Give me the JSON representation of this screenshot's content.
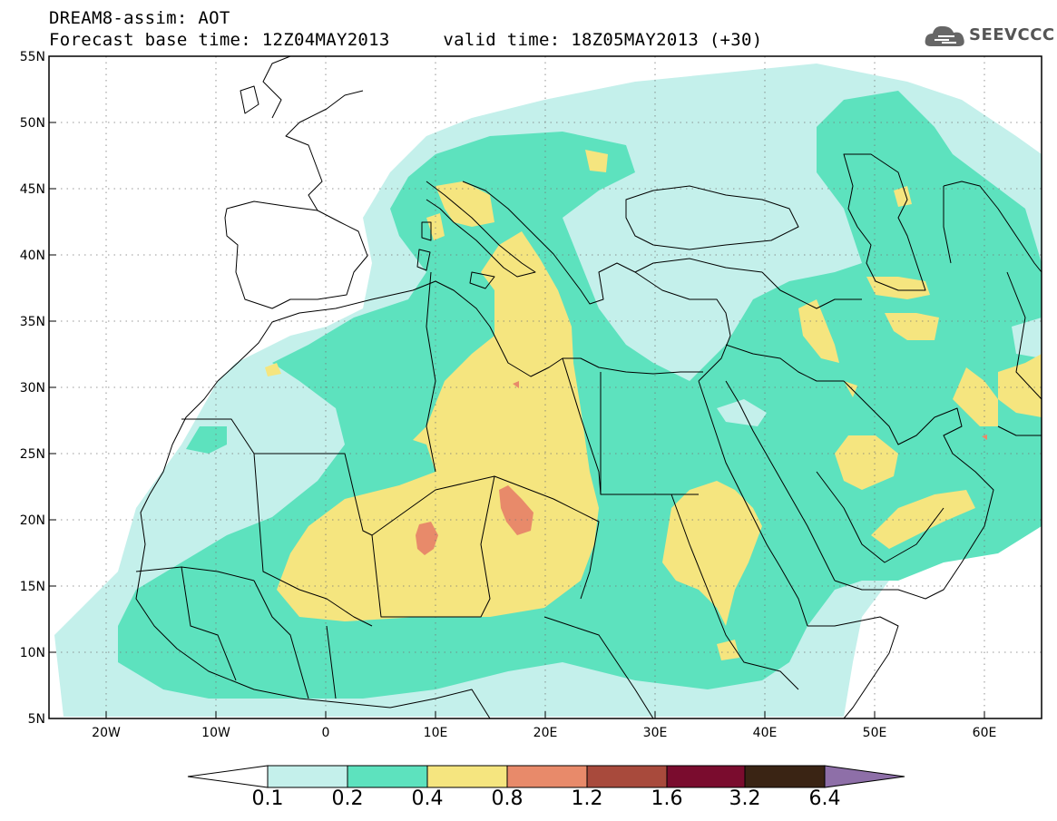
{
  "header": {
    "title_line1": "DREAM8-assim: AOT",
    "title_line2": "Forecast base time: 12Z04MAY2013     valid time: 18Z05MAY2013 (+30)"
  },
  "logo": {
    "text": "SEEVCCC",
    "icon": "cloud-icon"
  },
  "axes": {
    "lat_labels": [
      "55N",
      "50N",
      "45N",
      "40N",
      "35N",
      "30N",
      "25N",
      "20N",
      "15N",
      "10N",
      "5N"
    ],
    "lon_labels": [
      "20W",
      "10W",
      "0",
      "10E",
      "20E",
      "30E",
      "40E",
      "50E",
      "60E"
    ]
  },
  "colorbar": {
    "levels": [
      "0.1",
      "0.2",
      "0.4",
      "0.8",
      "1.2",
      "1.6",
      "3.2",
      "6.4"
    ],
    "colors": [
      "#ffffff",
      "#c4f0eb",
      "#5de2be",
      "#f5e57f",
      "#e88a6a",
      "#a84a3c",
      "#7a0c2e",
      "#3a2414",
      "#8e6fa8"
    ]
  },
  "map_colors": {
    "level1": "#c4f0eb",
    "level2": "#5de2be",
    "level3": "#f5e57f",
    "level4": "#e88a6a",
    "land": "#ffffff",
    "border": "#000000"
  }
}
